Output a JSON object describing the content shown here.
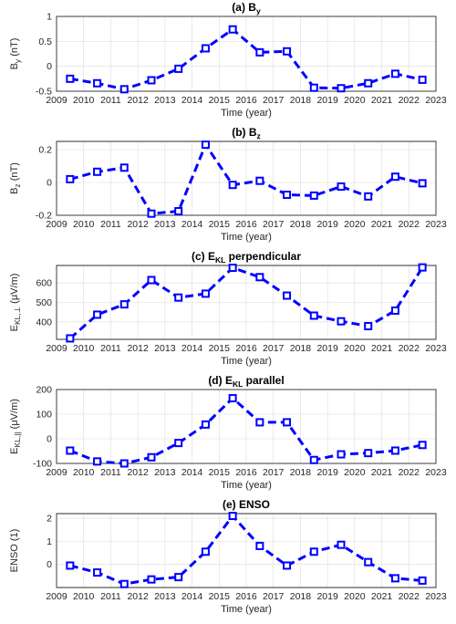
{
  "style": {
    "series_color": "#0000ff",
    "grid": true,
    "marker": "square",
    "line": "dashed"
  },
  "chart_data": [
    {
      "type": "line",
      "title_main": "(a) B",
      "title_sub": "y",
      "title_rest": "",
      "ylabel_main": "B",
      "ylabel_sub": "y",
      "ylabel_rest": " (nT)",
      "xlabel": "Time (year)",
      "xlim": [
        2009,
        2023
      ],
      "ylim": [
        -0.5,
        1
      ],
      "xticks": [
        2009,
        2010,
        2011,
        2012,
        2013,
        2014,
        2015,
        2016,
        2017,
        2018,
        2019,
        2020,
        2021,
        2022,
        2023
      ],
      "yticks": [
        -0.5,
        0,
        0.5,
        1
      ],
      "yticklabels": [
        "-0.5",
        "0",
        "0.5",
        "1"
      ],
      "x": [
        2009.5,
        2010.5,
        2011.5,
        2012.5,
        2013.5,
        2014.5,
        2015.5,
        2016.5,
        2017.5,
        2018.5,
        2019.5,
        2020.5,
        2021.5,
        2022.5
      ],
      "y": [
        -0.25,
        -0.34,
        -0.46,
        -0.28,
        -0.05,
        0.36,
        0.74,
        0.28,
        0.3,
        -0.43,
        -0.44,
        -0.34,
        -0.15,
        -0.27
      ]
    },
    {
      "type": "line",
      "title_main": "(b) B",
      "title_sub": "z",
      "title_rest": "",
      "ylabel_main": "B",
      "ylabel_sub": "z",
      "ylabel_rest": " (nT)",
      "xlabel": "Time (year)",
      "xlim": [
        2009,
        2023
      ],
      "ylim": [
        -0.2,
        0.25
      ],
      "xticks": [
        2009,
        2010,
        2011,
        2012,
        2013,
        2014,
        2015,
        2016,
        2017,
        2018,
        2019,
        2020,
        2021,
        2022,
        2023
      ],
      "yticks": [
        -0.2,
        0,
        0.2
      ],
      "yticklabels": [
        "-0.2",
        "0",
        "0.2"
      ],
      "x": [
        2009.5,
        2010.5,
        2011.5,
        2012.5,
        2013.5,
        2014.5,
        2015.5,
        2016.5,
        2017.5,
        2018.5,
        2019.5,
        2020.5,
        2021.5,
        2022.5
      ],
      "y": [
        0.02,
        0.065,
        0.09,
        -0.19,
        -0.175,
        0.23,
        -0.015,
        0.01,
        -0.075,
        -0.08,
        -0.025,
        -0.085,
        0.035,
        -0.005
      ]
    },
    {
      "type": "line",
      "title_main": "(c) E",
      "title_sub": "KL",
      "title_rest": " perpendicular",
      "ylabel_main": "E",
      "ylabel_sub": "KL,⊥",
      "ylabel_rest": " (μV/m)",
      "xlabel": "Time (year)",
      "xlim": [
        2009,
        2023
      ],
      "ylim": [
        310,
        690
      ],
      "xticks": [
        2009,
        2010,
        2011,
        2012,
        2013,
        2014,
        2015,
        2016,
        2017,
        2018,
        2019,
        2020,
        2021,
        2022,
        2023
      ],
      "yticks": [
        400,
        500,
        600
      ],
      "yticklabels": [
        "400",
        "500",
        "600"
      ],
      "x": [
        2009.5,
        2010.5,
        2011.5,
        2012.5,
        2013.5,
        2014.5,
        2015.5,
        2016.5,
        2017.5,
        2018.5,
        2019.5,
        2020.5,
        2021.5,
        2022.5
      ],
      "y": [
        315,
        437,
        490,
        615,
        525,
        545,
        678,
        630,
        535,
        432,
        403,
        378,
        458,
        680
      ]
    },
    {
      "type": "line",
      "title_main": "(d) E",
      "title_sub": "KL",
      "title_rest": " parallel",
      "ylabel_main": "E",
      "ylabel_sub": "KL,||",
      "ylabel_rest": " (μV/m)",
      "xlabel": "Time (year)",
      "xlim": [
        2009,
        2023
      ],
      "ylim": [
        -100,
        200
      ],
      "xticks": [
        2009,
        2010,
        2011,
        2012,
        2013,
        2014,
        2015,
        2016,
        2017,
        2018,
        2019,
        2020,
        2021,
        2022,
        2023
      ],
      "yticks": [
        -100,
        0,
        100,
        200
      ],
      "yticklabels": [
        "-100",
        "0",
        "100",
        "200"
      ],
      "x": [
        2009.5,
        2010.5,
        2011.5,
        2012.5,
        2013.5,
        2014.5,
        2015.5,
        2016.5,
        2017.5,
        2018.5,
        2019.5,
        2020.5,
        2021.5,
        2022.5
      ],
      "y": [
        -48,
        -92,
        -100,
        -75,
        -17,
        58,
        165,
        67,
        67,
        -86,
        -63,
        -58,
        -48,
        -25
      ]
    },
    {
      "type": "line",
      "title_main": "(e) ENSO",
      "title_sub": "",
      "title_rest": "",
      "ylabel_main": "ENSO (1)",
      "ylabel_sub": "",
      "ylabel_rest": "",
      "xlabel": "Time (year)",
      "xlim": [
        2009,
        2023
      ],
      "ylim": [
        -1,
        2.2
      ],
      "xticks": [
        2009,
        2010,
        2011,
        2012,
        2013,
        2014,
        2015,
        2016,
        2017,
        2018,
        2019,
        2020,
        2021,
        2022,
        2023
      ],
      "yticks": [
        0,
        1,
        2
      ],
      "yticklabels": [
        "0",
        "1",
        "2"
      ],
      "x": [
        2009.5,
        2010.5,
        2011.5,
        2012.5,
        2013.5,
        2014.5,
        2015.5,
        2016.5,
        2017.5,
        2018.5,
        2019.5,
        2020.5,
        2021.5,
        2022.5
      ],
      "y": [
        -0.05,
        -0.35,
        -0.85,
        -0.65,
        -0.55,
        0.55,
        2.1,
        0.8,
        -0.05,
        0.55,
        0.85,
        0.1,
        -0.6,
        -0.7
      ]
    }
  ]
}
